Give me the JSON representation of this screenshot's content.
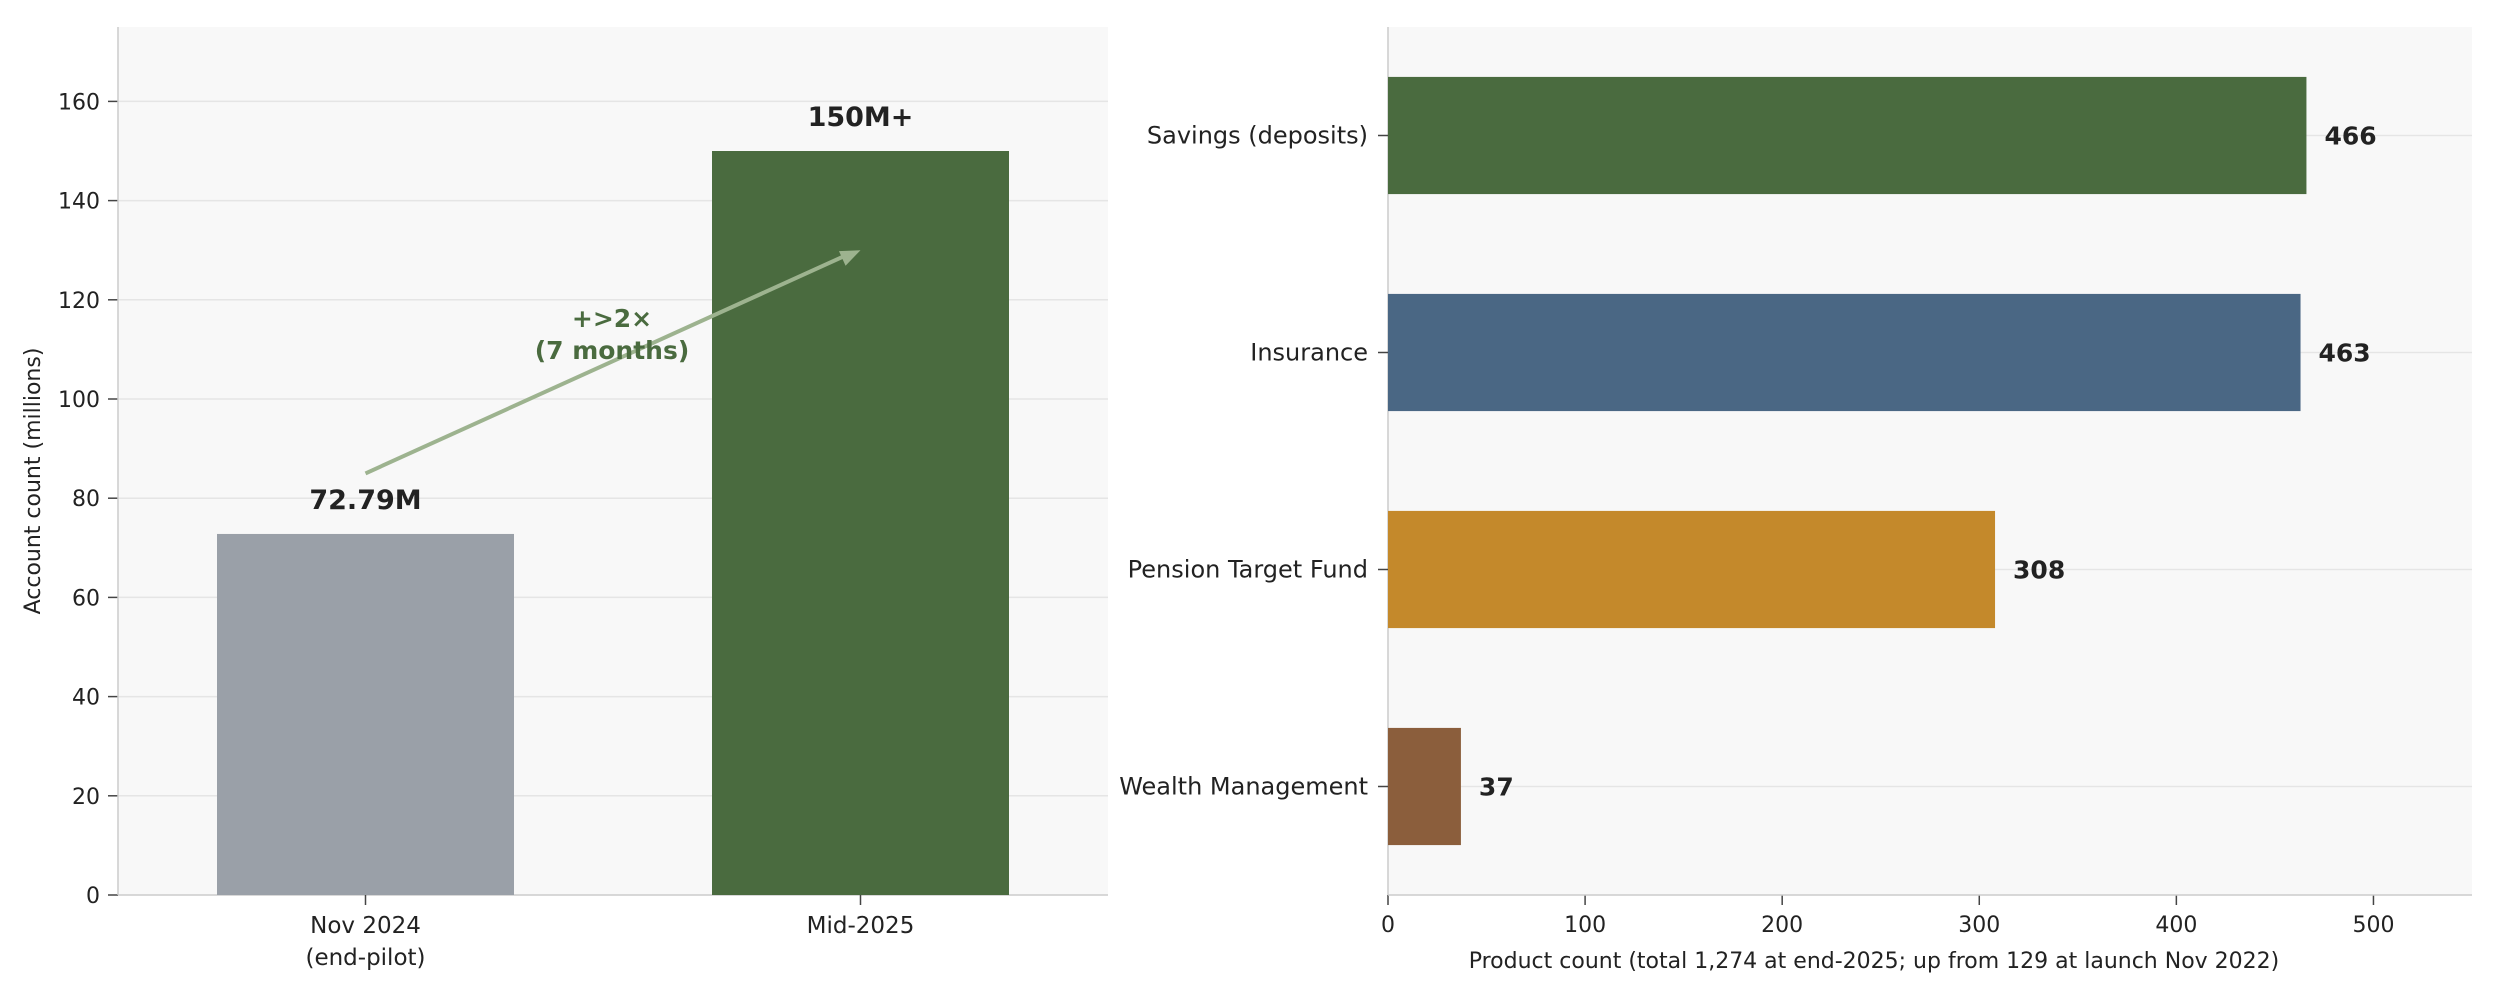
{
  "colors": {
    "panel_bg": "#f8f8f8",
    "grid": "#e5e5e5",
    "axis": "#cccccc",
    "text": "#222222",
    "annotation": "#4a6b3f",
    "arrow": "#9db38f"
  },
  "chart_data": [
    {
      "type": "bar",
      "orientation": "vertical",
      "categories": [
        "Nov 2024\n(end-pilot)",
        "Mid-2025"
      ],
      "values": [
        72.79,
        150
      ],
      "bar_colors": [
        "#9aa0a8",
        "#4a6b3f"
      ],
      "data_labels": [
        "72.79M",
        "150M+"
      ],
      "ylabel": "Account count (millions)",
      "ylim": [
        0,
        175
      ],
      "yticks": [
        0,
        20,
        40,
        60,
        80,
        100,
        120,
        140,
        160
      ],
      "grid": true,
      "annotation": {
        "text": "+>2×\n(7 months)",
        "arrow_from": {
          "x": 0,
          "y": 85
        },
        "arrow_to": {
          "x": 1,
          "y": 130
        }
      }
    },
    {
      "type": "bar",
      "orientation": "horizontal",
      "categories": [
        "Savings (deposits)",
        "Insurance",
        "Pension Target Fund",
        "Wealth Management"
      ],
      "values": [
        466,
        463,
        308,
        37
      ],
      "bar_colors": [
        "#4a6b3f",
        "#4a6784",
        "#c4892b",
        "#8b5e3c"
      ],
      "data_labels": [
        "466",
        "463",
        "308",
        "37"
      ],
      "xlabel": "Product count (total 1,274 at end-2025; up from 129 at launch Nov 2022)",
      "xlim": [
        0,
        550
      ],
      "xticks": [
        0,
        100,
        200,
        300,
        400,
        500
      ],
      "grid": true
    }
  ]
}
